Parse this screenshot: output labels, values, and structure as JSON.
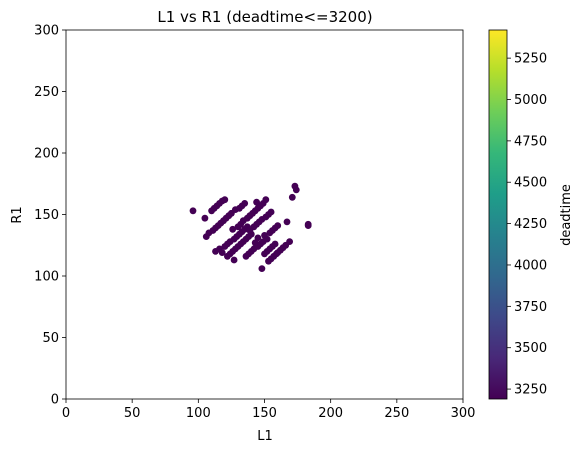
{
  "chart_data": {
    "type": "scatter",
    "title": "L1 vs R1 (deadtime<=3200)",
    "xlabel": "L1",
    "ylabel": "R1",
    "xlim": [
      0,
      300
    ],
    "ylim": [
      0,
      300
    ],
    "xticks": [
      0,
      50,
      100,
      150,
      200,
      250,
      300
    ],
    "yticks": [
      0,
      50,
      100,
      150,
      200,
      250,
      300
    ],
    "grid": false,
    "point_color": "#440154",
    "colorbar": {
      "label": "deadtime",
      "range": [
        3190,
        5420
      ],
      "ticks": [
        3250,
        3500,
        3750,
        4000,
        4250,
        4500,
        4750,
        5000,
        5250
      ],
      "colormap": "viridis",
      "stops": [
        "#440154",
        "#482878",
        "#3e4989",
        "#31688e",
        "#26828e",
        "#1f9e89",
        "#35b779",
        "#6ece58",
        "#b5de2b",
        "#fde725"
      ]
    },
    "points": [
      [
        96,
        153
      ],
      [
        105,
        147
      ],
      [
        106,
        132
      ],
      [
        108,
        135
      ],
      [
        110,
        153
      ],
      [
        111,
        137
      ],
      [
        112,
        155
      ],
      [
        113,
        139
      ],
      [
        113,
        120
      ],
      [
        114,
        157
      ],
      [
        115,
        141
      ],
      [
        116,
        159
      ],
      [
        116,
        122
      ],
      [
        117,
        143
      ],
      [
        118,
        161
      ],
      [
        118,
        119
      ],
      [
        119,
        145
      ],
      [
        120,
        162
      ],
      [
        120,
        124
      ],
      [
        121,
        147
      ],
      [
        122,
        116
      ],
      [
        122,
        126
      ],
      [
        123,
        149
      ],
      [
        124,
        118
      ],
      [
        124,
        128
      ],
      [
        125,
        151
      ],
      [
        126,
        138
      ],
      [
        126,
        120
      ],
      [
        127,
        130
      ],
      [
        128,
        154
      ],
      [
        128,
        122
      ],
      [
        129,
        132
      ],
      [
        130,
        140
      ],
      [
        130,
        124
      ],
      [
        131,
        155
      ],
      [
        131,
        134
      ],
      [
        132,
        126
      ],
      [
        132,
        142
      ],
      [
        133,
        157
      ],
      [
        133,
        136
      ],
      [
        134,
        128
      ],
      [
        134,
        145
      ],
      [
        135,
        159
      ],
      [
        135,
        138
      ],
      [
        136,
        116
      ],
      [
        136,
        130
      ],
      [
        137,
        147
      ],
      [
        137,
        140
      ],
      [
        138,
        118
      ],
      [
        138,
        132
      ],
      [
        139,
        149
      ],
      [
        140,
        120
      ],
      [
        140,
        134
      ],
      [
        141,
        151
      ],
      [
        142,
        122
      ],
      [
        142,
        140
      ],
      [
        143,
        153
      ],
      [
        143,
        127
      ],
      [
        144,
        142
      ],
      [
        144,
        160
      ],
      [
        145,
        124
      ],
      [
        145,
        155
      ],
      [
        146,
        144
      ],
      [
        147,
        126
      ],
      [
        147,
        157
      ],
      [
        148,
        106
      ],
      [
        148,
        146
      ],
      [
        149,
        128
      ],
      [
        149,
        159
      ],
      [
        150,
        133
      ],
      [
        150,
        118
      ],
      [
        151,
        148
      ],
      [
        151,
        162
      ],
      [
        152,
        130
      ],
      [
        152,
        120
      ],
      [
        153,
        150
      ],
      [
        153,
        112
      ],
      [
        154,
        135
      ],
      [
        154,
        122
      ],
      [
        155,
        152
      ],
      [
        155,
        114
      ],
      [
        156,
        137
      ],
      [
        156,
        124
      ],
      [
        157,
        116
      ],
      [
        158,
        139
      ],
      [
        158,
        126
      ],
      [
        159,
        118
      ],
      [
        160,
        141
      ],
      [
        160,
        119
      ],
      [
        162,
        121
      ],
      [
        164,
        123
      ],
      [
        166,
        125
      ],
      [
        167,
        144
      ],
      [
        169,
        128
      ],
      [
        171,
        164
      ],
      [
        173,
        173
      ],
      [
        174,
        170
      ],
      [
        183,
        142
      ],
      [
        183,
        141
      ],
      [
        145,
        131
      ],
      [
        139,
        137
      ],
      [
        127,
        113
      ]
    ]
  }
}
